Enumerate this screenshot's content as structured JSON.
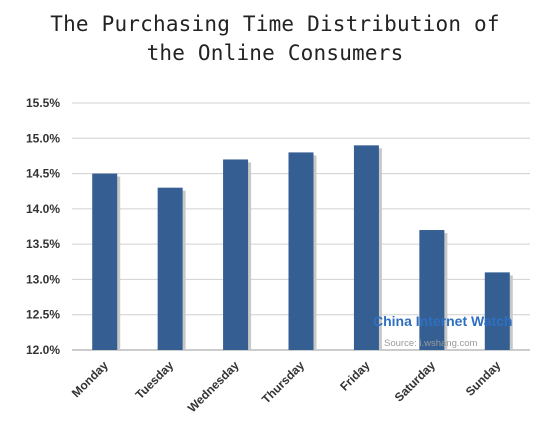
{
  "chart_data": {
    "type": "bar",
    "title_line1": "The Purchasing Time Distribution of",
    "title_line2": "the Online Consumers",
    "categories": [
      "Monday",
      "Tuesday",
      "Wednesday",
      "Thursday",
      "Friday",
      "Saturday",
      "Sunday"
    ],
    "values": [
      14.5,
      14.3,
      14.7,
      14.8,
      14.9,
      13.7,
      13.1
    ],
    "unit": "%",
    "ylim": [
      12.0,
      15.5
    ],
    "yticks": [
      "12.0%",
      "12.5%",
      "13.0%",
      "13.5%",
      "14.0%",
      "14.5%",
      "15.0%",
      "15.5%"
    ],
    "grid": true,
    "bar_color": "#355f93"
  },
  "watermark": {
    "name": "China Internet Watch",
    "source": "Source: i.wshang.com"
  }
}
